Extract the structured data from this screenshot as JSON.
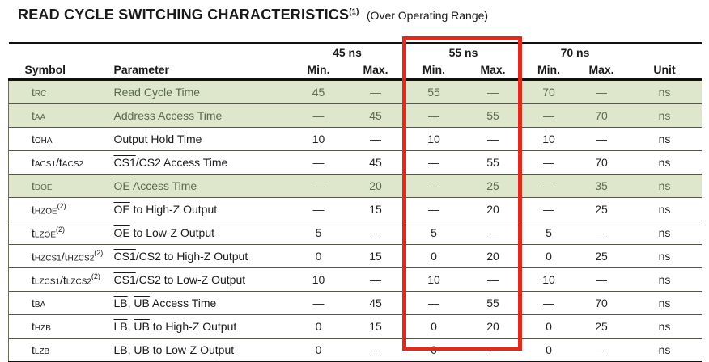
{
  "title": {
    "main": "READ CYCLE SWITCHING CHARACTERISTICS",
    "footnote": "(1)",
    "suffix": "(Over Operating Range)"
  },
  "colors": {
    "highlight_box_red": "#e2291c",
    "row_highlight_green": "#dee6cc",
    "row_highlight_text": "#5c6a4e"
  },
  "highlight_box": {
    "column_group": "55 ns"
  },
  "table": {
    "headers": {
      "symbol": "Symbol",
      "parameter": "Parameter",
      "min": "Min.",
      "max": "Max.",
      "unit": "Unit",
      "groups": [
        {
          "label": "45 ns"
        },
        {
          "label": "55 ns"
        },
        {
          "label": "70 ns"
        }
      ]
    },
    "rows": [
      {
        "symbol": [
          {
            "text": "t"
          },
          {
            "text": "RC",
            "sub": true
          }
        ],
        "footnote": "",
        "parameter": [
          {
            "text": "Read Cycle Time"
          }
        ],
        "values": [
          "45",
          "—",
          "55",
          "—",
          "70",
          "—"
        ],
        "unit": "ns",
        "highlight": true
      },
      {
        "symbol": [
          {
            "text": "t"
          },
          {
            "text": "AA",
            "sub": true
          }
        ],
        "footnote": "",
        "parameter": [
          {
            "text": "Address Access Time"
          }
        ],
        "values": [
          "—",
          "45",
          "—",
          "55",
          "—",
          "70"
        ],
        "unit": "ns",
        "highlight": true
      },
      {
        "symbol": [
          {
            "text": "t"
          },
          {
            "text": "OHA",
            "sub": true
          }
        ],
        "footnote": "",
        "parameter": [
          {
            "text": "Output Hold Time"
          }
        ],
        "values": [
          "10",
          "—",
          "10",
          "—",
          "10",
          "—"
        ],
        "unit": "ns",
        "highlight": false
      },
      {
        "symbol": [
          {
            "text": "t"
          },
          {
            "text": "ACS1",
            "sub": true
          },
          {
            "text": "/"
          },
          {
            "text": "t"
          },
          {
            "text": "ACS2",
            "sub": true
          }
        ],
        "footnote": "",
        "parameter": [
          {
            "text": "CS1",
            "overline": true
          },
          {
            "text": "/CS2 Access Time"
          }
        ],
        "values": [
          "—",
          "45",
          "—",
          "55",
          "—",
          "70"
        ],
        "unit": "ns",
        "highlight": false
      },
      {
        "symbol": [
          {
            "text": "t"
          },
          {
            "text": "DOE",
            "sub": true
          }
        ],
        "footnote": "",
        "parameter": [
          {
            "text": "OE",
            "overline": true
          },
          {
            "text": " Access Time"
          }
        ],
        "values": [
          "—",
          "20",
          "—",
          "25",
          "—",
          "35"
        ],
        "unit": "ns",
        "highlight": true
      },
      {
        "symbol": [
          {
            "text": "t"
          },
          {
            "text": "HZOE",
            "sub": true
          }
        ],
        "footnote": "(2)",
        "parameter": [
          {
            "text": "OE",
            "overline": true
          },
          {
            "text": " to High-Z Output"
          }
        ],
        "values": [
          "—",
          "15",
          "—",
          "20",
          "—",
          "25"
        ],
        "unit": "ns",
        "highlight": false
      },
      {
        "symbol": [
          {
            "text": "t"
          },
          {
            "text": "LZOE",
            "sub": true
          }
        ],
        "footnote": "(2)",
        "parameter": [
          {
            "text": "OE",
            "overline": true
          },
          {
            "text": " to Low-Z Output"
          }
        ],
        "values": [
          "5",
          "—",
          "5",
          "—",
          "5",
          "—"
        ],
        "unit": "ns",
        "highlight": false
      },
      {
        "symbol": [
          {
            "text": "t"
          },
          {
            "text": "HZCS1",
            "sub": true
          },
          {
            "text": "/"
          },
          {
            "text": "t"
          },
          {
            "text": "HZCS2",
            "sub": true
          }
        ],
        "footnote": "(2)",
        "parameter": [
          {
            "text": "CS1",
            "overline": true
          },
          {
            "text": "/CS2 to High-Z Output"
          }
        ],
        "values": [
          "0",
          "15",
          "0",
          "20",
          "0",
          "25"
        ],
        "unit": "ns",
        "highlight": false
      },
      {
        "symbol": [
          {
            "text": "t"
          },
          {
            "text": "LZCS1",
            "sub": true
          },
          {
            "text": "/"
          },
          {
            "text": "t"
          },
          {
            "text": "LZCS2",
            "sub": true
          }
        ],
        "footnote": "(2)",
        "parameter": [
          {
            "text": "CS1",
            "overline": true
          },
          {
            "text": "/CS2 to Low-Z Output"
          }
        ],
        "values": [
          "10",
          "—",
          "10",
          "—",
          "10",
          "—"
        ],
        "unit": "ns",
        "highlight": false
      },
      {
        "symbol": [
          {
            "text": "t"
          },
          {
            "text": "BA",
            "sub": true
          }
        ],
        "footnote": "",
        "parameter": [
          {
            "text": "LB",
            "overline": true
          },
          {
            "text": ", "
          },
          {
            "text": "UB",
            "overline": true
          },
          {
            "text": " Access Time"
          }
        ],
        "values": [
          "—",
          "45",
          "—",
          "55",
          "—",
          "70"
        ],
        "unit": "ns",
        "highlight": false
      },
      {
        "symbol": [
          {
            "text": "t"
          },
          {
            "text": "HZB",
            "sub": true
          }
        ],
        "footnote": "",
        "parameter": [
          {
            "text": "LB",
            "overline": true
          },
          {
            "text": ", "
          },
          {
            "text": "UB",
            "overline": true
          },
          {
            "text": " to High-Z Output"
          }
        ],
        "values": [
          "0",
          "15",
          "0",
          "20",
          "0",
          "25"
        ],
        "unit": "ns",
        "highlight": false
      },
      {
        "symbol": [
          {
            "text": "t"
          },
          {
            "text": "LZB",
            "sub": true
          }
        ],
        "footnote": "",
        "parameter": [
          {
            "text": "LB",
            "overline": true
          },
          {
            "text": ", "
          },
          {
            "text": "UB",
            "overline": true
          },
          {
            "text": " to Low-Z Output"
          }
        ],
        "values": [
          "0",
          "—",
          "0",
          "—",
          "0",
          "—"
        ],
        "unit": "ns",
        "highlight": false
      }
    ]
  }
}
